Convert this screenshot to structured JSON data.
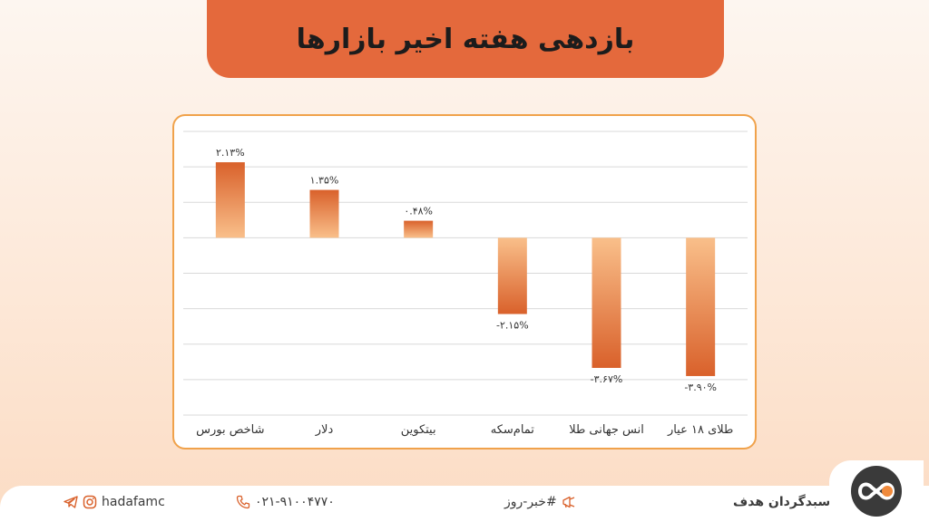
{
  "header": {
    "title": "بازدهی هفته اخیر بازارها"
  },
  "chart_data": {
    "type": "bar",
    "categories": [
      "شاخص بورس",
      "دلار",
      "بیتکوین",
      "تمام‌سکه",
      "انس جهانی طلا",
      "طلای ۱۸ عیار"
    ],
    "values": [
      2.13,
      1.35,
      0.48,
      -2.15,
      -3.67,
      -3.9
    ],
    "data_labels": [
      "۲.۱۳%",
      "۱.۳۵%",
      "۰.۴۸%",
      "-۲.۱۵%",
      "-۳.۶۷%",
      "-۳.۹۰%"
    ],
    "title": "",
    "xlabel": "",
    "ylabel": "",
    "ylim": [
      -5,
      3
    ],
    "grid": true,
    "colors": {
      "bar_dark": "#d9612b",
      "bar_light": "#f9bf8a",
      "grid": "#d9d9d9"
    }
  },
  "footer": {
    "social_handle": "hadafamc",
    "phone": "۰۲۱-۹۱۰۰۴۷۷۰",
    "news_tag": "#خبر-روز",
    "brand": "سبدگردان هدف",
    "icons": [
      "telegram-icon",
      "instagram-icon",
      "phone-icon",
      "megaphone-icon",
      "infinity-logo-icon"
    ]
  }
}
